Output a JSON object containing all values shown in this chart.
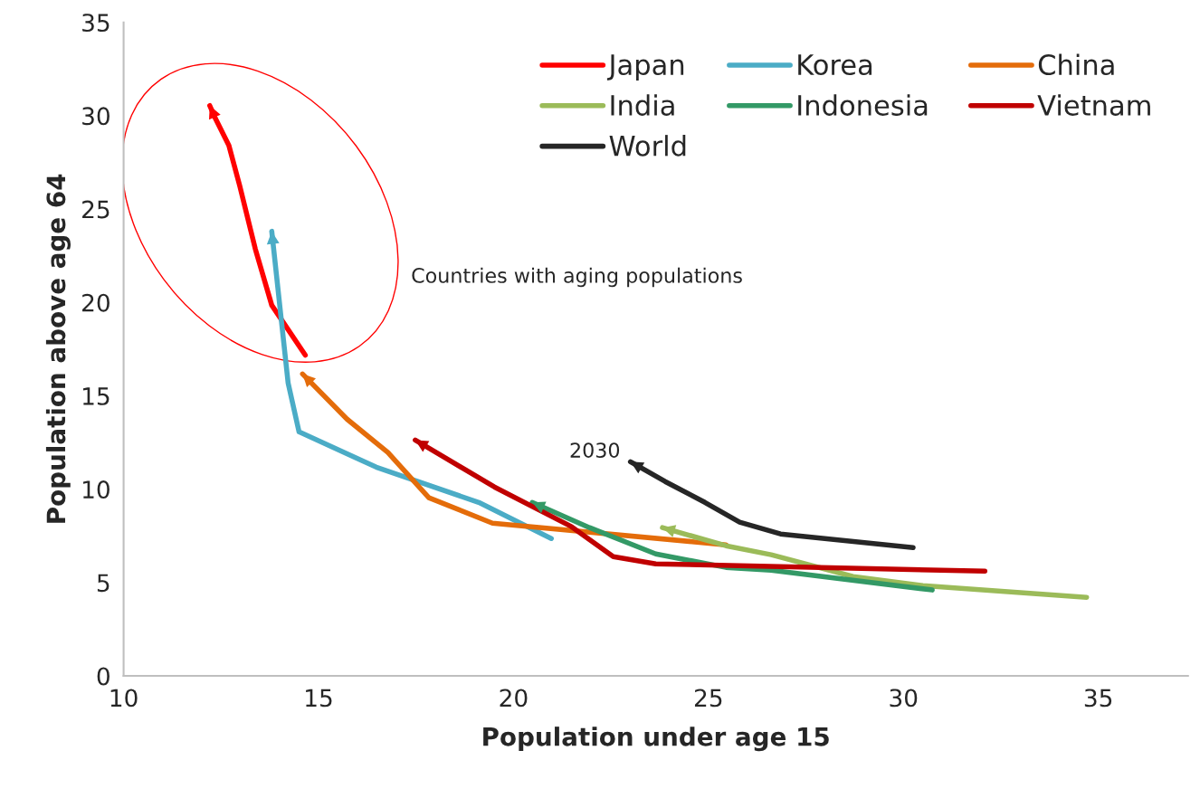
{
  "chart_data": {
    "type": "line",
    "xlabel": "Population under age 15",
    "ylabel": "Population above age 64",
    "xlim": [
      10,
      37.3
    ],
    "ylim": [
      0,
      35
    ],
    "xticks": [
      10,
      15,
      20,
      25,
      30,
      35
    ],
    "yticks": [
      0,
      5,
      10,
      15,
      20,
      25,
      30,
      35
    ],
    "grid": false,
    "legend": "top right",
    "marker": "none",
    "line_style": "solid",
    "annotations": [
      "Countries with aging populations",
      {
        "text": "2030",
        "x": 23.0,
        "y": 11.47
      }
    ],
    "series": [
      {
        "name": "Japan",
        "color": "#ff0000",
        "x": [
          14.66,
          13.8,
          13.38,
          12.98,
          12.7,
          12.35,
          12.21
        ],
        "values": [
          17.18,
          19.85,
          22.85,
          26.23,
          28.41,
          29.87,
          30.54
        ]
      },
      {
        "name": "Korea",
        "color": "#4bacc6",
        "x": [
          20.97,
          19.11,
          16.48,
          14.5,
          14.22,
          13.8
        ],
        "values": [
          7.36,
          9.29,
          11.18,
          13.07,
          15.68,
          23.81
        ]
      },
      {
        "name": "China",
        "color": "#e46c0a",
        "x": [
          25.45,
          19.46,
          17.83,
          16.78,
          15.73,
          14.59
        ],
        "values": [
          7.02,
          8.18,
          9.54,
          11.96,
          13.75,
          16.17
        ]
      },
      {
        "name": "India",
        "color": "#9bbb59",
        "x": [
          34.7,
          30.5,
          28.71,
          26.61,
          25.45,
          23.82
        ],
        "values": [
          4.21,
          4.84,
          5.32,
          6.49,
          6.97,
          7.94
        ]
      },
      {
        "name": "Indonesia",
        "color": "#339966",
        "x": [
          30.74,
          26.61,
          25.45,
          23.65,
          21.95,
          20.48
        ],
        "values": [
          4.6,
          5.66,
          5.81,
          6.53,
          7.94,
          9.29
        ]
      },
      {
        "name": "Vietnam",
        "color": "#c00000",
        "x": [
          32.09,
          23.65,
          22.56,
          21.49,
          19.51,
          17.48
        ],
        "values": [
          5.61,
          6.0,
          6.39,
          7.99,
          10.12,
          12.63
        ]
      },
      {
        "name": "World",
        "color": "#262626",
        "x": [
          30.25,
          26.85,
          25.8,
          24.91,
          23.89,
          23.0
        ],
        "values": [
          6.87,
          7.6,
          8.23,
          9.29,
          10.41,
          11.47
        ]
      }
    ]
  }
}
